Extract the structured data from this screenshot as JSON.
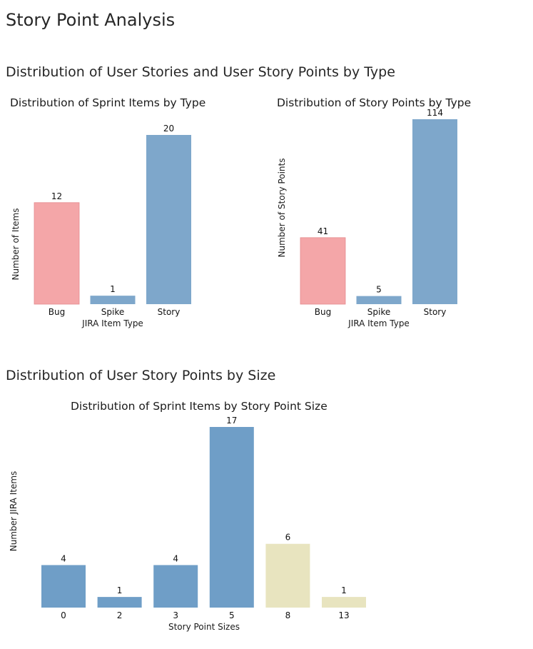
{
  "page": {
    "title": "Story Point Analysis",
    "section1_title": "Distribution of User Stories and User Story Points by Type",
    "section2_title": "Distribution of User Story Points by Size"
  },
  "chart_data": [
    {
      "type": "bar",
      "title": "Distribution of Sprint Items by Type",
      "xlabel": "JIRA Item Type",
      "ylabel": "Number of Items",
      "categories": [
        "Bug",
        "Spike",
        "Story"
      ],
      "values": [
        12,
        1,
        20
      ],
      "colors": [
        "#f4a6a8",
        "#7ea7cb",
        "#7ea7cb"
      ],
      "ylim": [
        0,
        22
      ],
      "grid": false,
      "legend": "none"
    },
    {
      "type": "bar",
      "title": "Distribution of Story Points by Type",
      "xlabel": "JIRA Item Type",
      "ylabel": "Number of Story Points",
      "categories": [
        "Bug",
        "Spike",
        "Story"
      ],
      "values": [
        41,
        5,
        114
      ],
      "colors": [
        "#f4a6a8",
        "#7ea7cb",
        "#7ea7cb"
      ],
      "ylim": [
        0,
        124
      ],
      "grid": false,
      "legend": "none"
    },
    {
      "type": "bar",
      "title": "Distribution of Sprint Items by Story Point Size",
      "xlabel": "Story Point Sizes",
      "ylabel": "Number JIRA Items",
      "categories": [
        "0",
        "2",
        "3",
        "5",
        "8",
        "13"
      ],
      "values": [
        4,
        1,
        4,
        17,
        6,
        1
      ],
      "colors": [
        "#6f9ec7",
        "#6f9ec7",
        "#6f9ec7",
        "#6f9ec7",
        "#e8e4bf",
        "#e8e4bf"
      ],
      "ylim": [
        0,
        22
      ],
      "grid": false,
      "legend": "none"
    }
  ]
}
